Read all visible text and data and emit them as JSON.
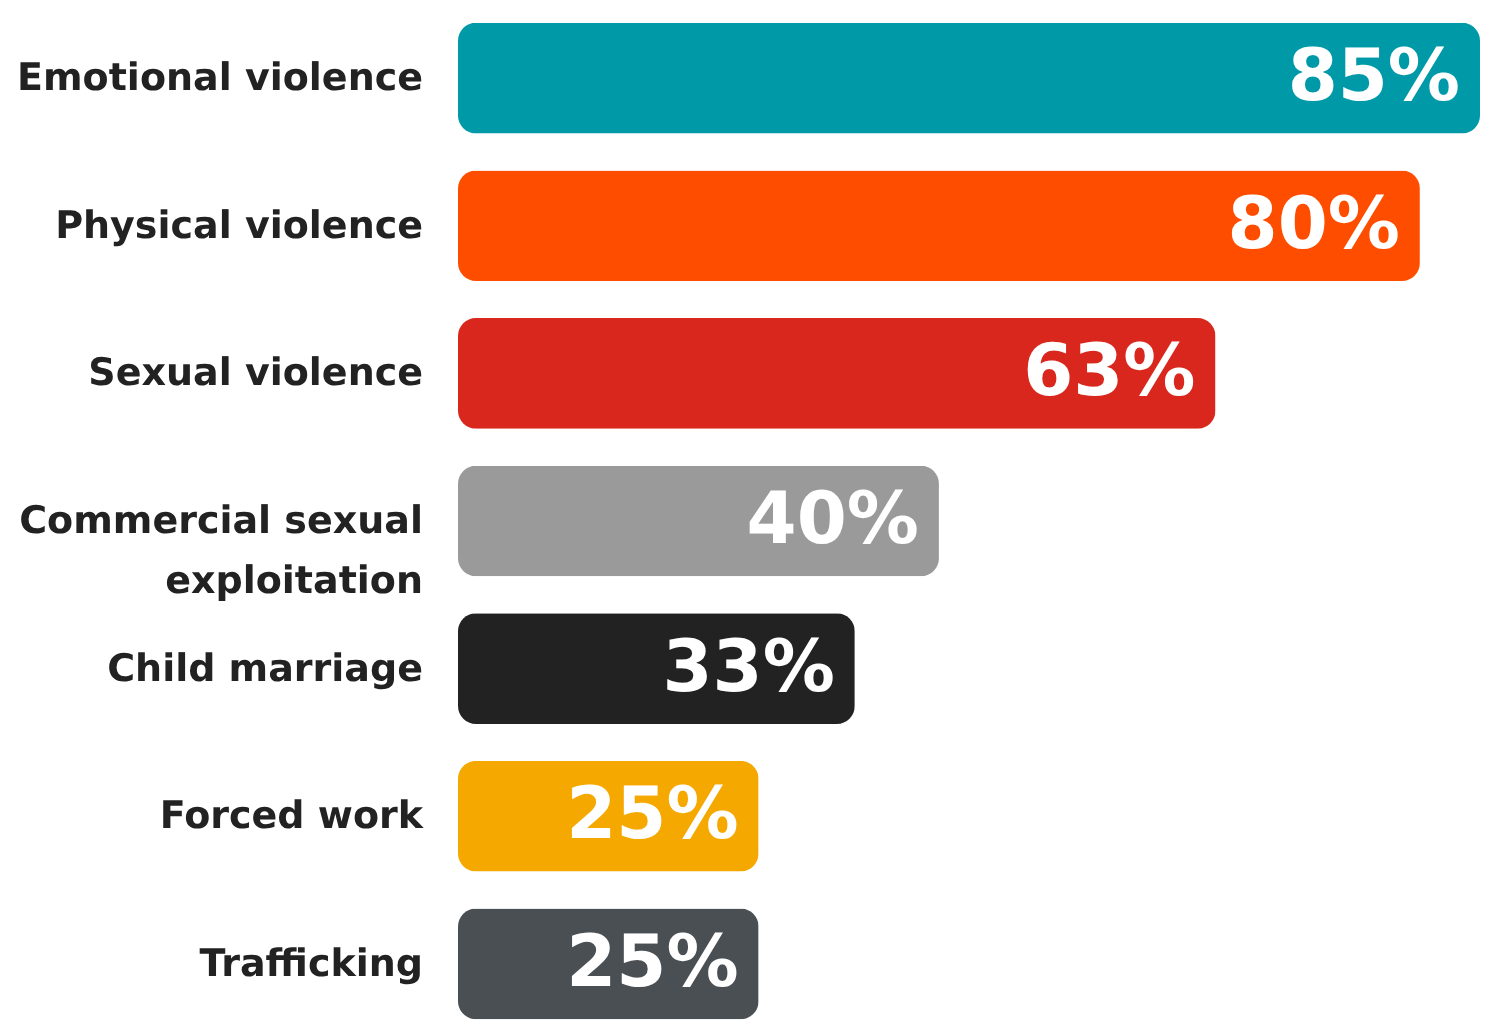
{
  "chart_data": {
    "type": "bar",
    "orientation": "horizontal",
    "categories": [
      "Emotional violence",
      "Physical violence",
      "Sexual violence",
      "Commercial sexual exploitation",
      "Child marriage",
      "Forced work",
      "Trafficking"
    ],
    "values": [
      85,
      80,
      63,
      40,
      33,
      25,
      25
    ],
    "colors": [
      "#0099a8",
      "#ff4d00",
      "#d9271e",
      "#9a9a9a",
      "#222222",
      "#f5a800",
      "#4a4f54"
    ],
    "value_labels": [
      "85%",
      "80%",
      "63%",
      "40%",
      "33%",
      "25%",
      "25%"
    ],
    "xlim": [
      0,
      85
    ],
    "tick_labels": "y"
  }
}
